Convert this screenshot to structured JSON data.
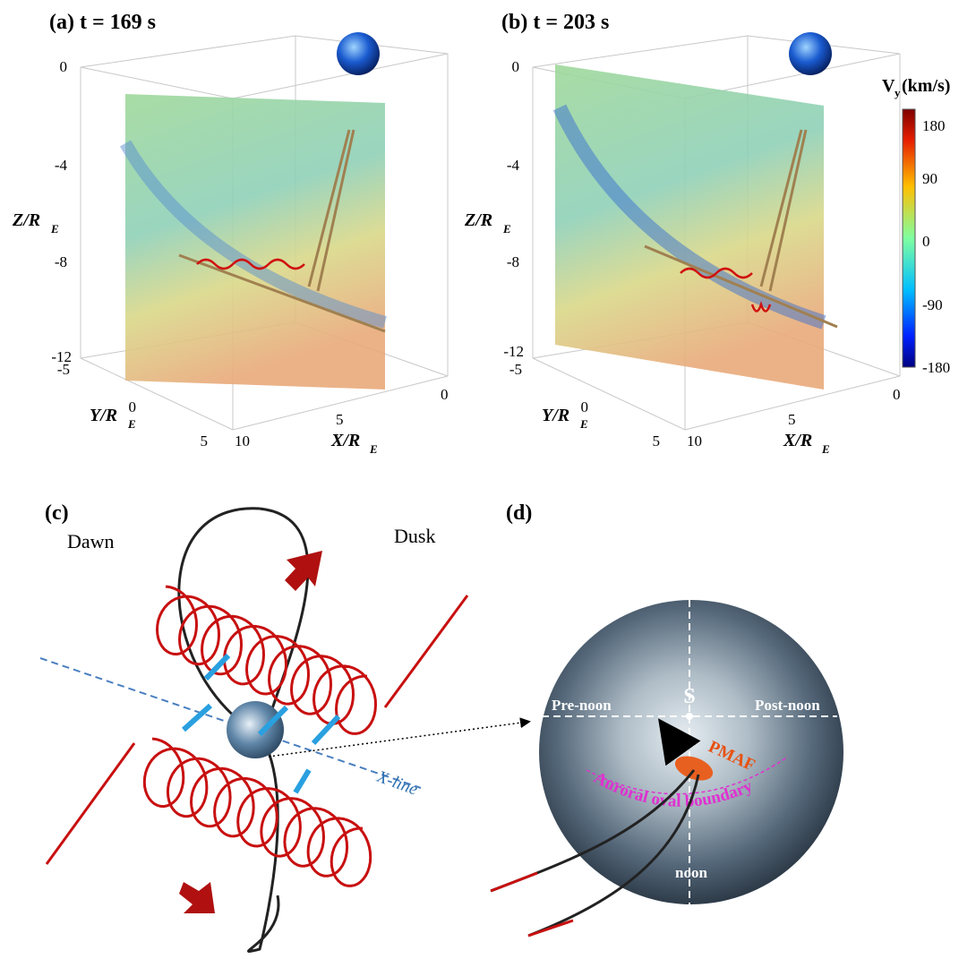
{
  "panel_a": {
    "label": "(a) t = 169 s",
    "z_ticks": [
      "0",
      "-4",
      "-8",
      "-12"
    ],
    "y_ticks": [
      "-5",
      "0",
      "5"
    ],
    "x_ticks": [
      "10",
      "5",
      "0"
    ],
    "z_axis": {
      "text": "Z/R",
      "sub": "E"
    },
    "y_axis": {
      "text": "Y/R",
      "sub": "E"
    },
    "x_axis": {
      "text": "X/R",
      "sub": "E"
    }
  },
  "panel_b": {
    "label": "(b) t = 203 s",
    "z_ticks": [
      "0",
      "-4",
      "-8",
      "-12"
    ],
    "y_ticks": [
      "-5",
      "0",
      "5"
    ],
    "x_ticks": [
      "10",
      "5",
      "0"
    ],
    "z_axis": {
      "text": "Z/R",
      "sub": "E"
    },
    "y_axis": {
      "text": "Y/R",
      "sub": "E"
    },
    "x_axis": {
      "text": "X/R",
      "sub": "E"
    }
  },
  "colorbar": {
    "title": "V",
    "title_sub": "y",
    "title_unit": "(km/s)",
    "ticks": [
      "180",
      "90",
      "0",
      "-90",
      "-180"
    ]
  },
  "panel_c": {
    "label": "(c)",
    "dawn": "Dawn",
    "dusk": "Dusk",
    "x_line": "X-line"
  },
  "panel_d": {
    "label": "(d)",
    "s": "S",
    "pre_noon": "Pre-noon",
    "post_noon": "Post-noon",
    "pmaf": "PMAF",
    "boundary": "Auroral oval boundary",
    "noon": "noon"
  }
}
